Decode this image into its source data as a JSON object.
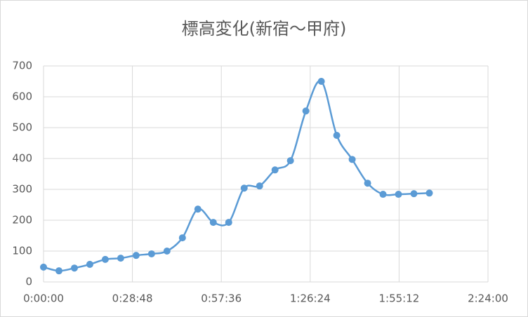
{
  "chart_data": {
    "type": "line",
    "title": "標高変化(新宿～甲府)",
    "x": [
      0,
      300,
      600,
      900,
      1200,
      1500,
      1800,
      2100,
      2400,
      2700,
      3000,
      3300,
      3600,
      3900,
      4200,
      4500,
      4800,
      5100,
      5400,
      5700,
      6000,
      6300,
      6600,
      6900,
      7200,
      7500
    ],
    "series": [
      {
        "color": "#5b9bd5",
        "values": [
          48,
          36,
          45,
          57,
          73,
          77,
          86,
          91,
          100,
          143,
          236,
          193,
          193,
          304,
          311,
          363,
          393,
          554,
          650,
          475,
          397,
          320,
          284,
          284,
          286,
          288
        ]
      }
    ],
    "xlim": [
      0,
      8640
    ],
    "xticks": [
      {
        "value": 0,
        "label": "0:00:00"
      },
      {
        "value": 1728,
        "label": "0:28:48"
      },
      {
        "value": 3456,
        "label": "0:57:36"
      },
      {
        "value": 5184,
        "label": "1:26:24"
      },
      {
        "value": 6912,
        "label": "1:55:12"
      },
      {
        "value": 8640,
        "label": "2:24:00"
      }
    ],
    "ylim": [
      0,
      700
    ],
    "yticks": [
      0,
      100,
      200,
      300,
      400,
      500,
      600,
      700
    ],
    "grid": true,
    "smooth": true
  }
}
